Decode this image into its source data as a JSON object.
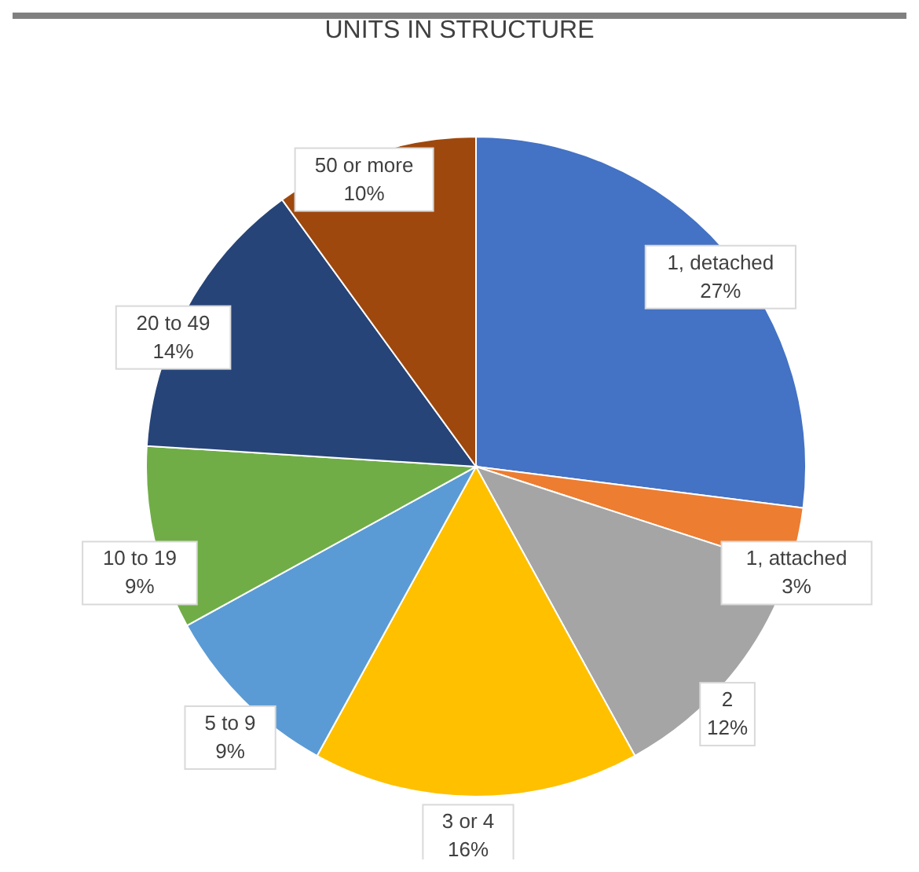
{
  "chart_data": {
    "type": "pie",
    "title": "UNITS IN STRUCTURE",
    "categories": [
      "1, detached",
      "1, attached",
      "2",
      "3 or 4",
      "5 to 9",
      "10 to 19",
      "20 to 49",
      "50 or more"
    ],
    "values": [
      27,
      3,
      12,
      16,
      9,
      9,
      14,
      10
    ],
    "value_labels": [
      "27%",
      "3%",
      "12%",
      "16%",
      "9%",
      "9%",
      "14%",
      "10%"
    ],
    "colors": [
      "#4472c4",
      "#ed7d31",
      "#a5a5a5",
      "#ffc000",
      "#5b9bd5",
      "#70ad47",
      "#264478",
      "#9e480e"
    ],
    "legend": false
  }
}
